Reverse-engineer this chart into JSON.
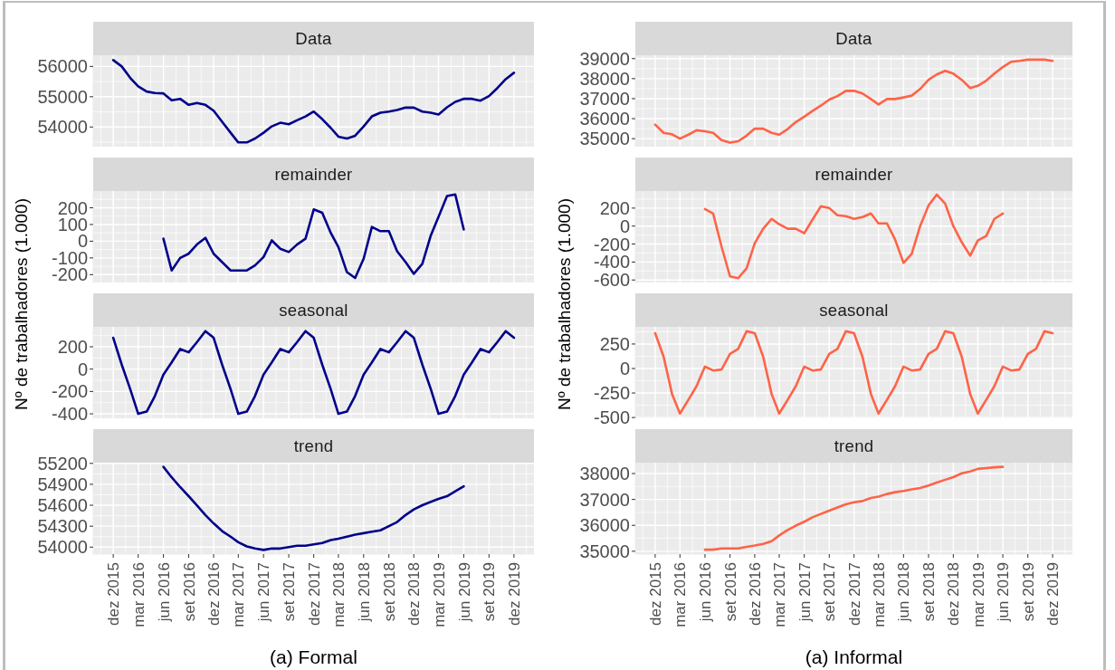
{
  "chart_data": [
    {
      "type": "line",
      "title": "Data",
      "x": [
        "2015-12",
        "2016-01",
        "2016-02",
        "2016-03",
        "2016-04",
        "2016-05",
        "2016-06",
        "2016-07",
        "2016-08",
        "2016-09",
        "2016-10",
        "2016-11",
        "2016-12",
        "2017-01",
        "2017-02",
        "2017-03",
        "2017-04",
        "2017-05",
        "2017-06",
        "2017-07",
        "2017-08",
        "2017-09",
        "2017-10",
        "2017-11",
        "2017-12",
        "2018-01",
        "2018-02",
        "2018-03",
        "2018-04",
        "2018-05",
        "2018-06",
        "2018-07",
        "2018-08",
        "2018-09",
        "2018-10",
        "2018-11",
        "2018-12",
        "2019-01",
        "2019-02",
        "2019-03",
        "2019-04",
        "2019-05",
        "2019-06",
        "2019-07",
        "2019-08",
        "2019-09",
        "2019-10",
        "2019-11",
        "2019-12"
      ],
      "series": [
        {
          "color": "#00008b",
          "values": [
            56210,
            56000,
            55620,
            55340,
            55170,
            55120,
            55110,
            54880,
            54930,
            54730,
            54790,
            54730,
            54540,
            54170,
            53810,
            53490,
            53490,
            53620,
            53810,
            54020,
            54140,
            54090,
            54220,
            54350,
            54510,
            54260,
            53970,
            53680,
            53620,
            53710,
            54020,
            54350,
            54470,
            54510,
            54560,
            54640,
            54640,
            54510,
            54470,
            54410,
            54650,
            54830,
            54930,
            54930,
            54870,
            55020,
            55280,
            55580,
            55790
          ]
        }
      ],
      "xlim": [
        "2015-09-19",
        "2020-02-12"
      ],
      "xticks": [
        {
          "value": "2015-12",
          "label": null
        },
        {
          "value": "2016-03",
          "label": null
        },
        {
          "value": "2016-06",
          "label": null
        },
        {
          "value": "2016-09",
          "label": null
        },
        {
          "value": "2016-12",
          "label": null
        },
        {
          "value": "2017-03",
          "label": null
        },
        {
          "value": "2017-06",
          "label": null
        },
        {
          "value": "2017-09",
          "label": null
        },
        {
          "value": "2017-12",
          "label": null
        },
        {
          "value": "2018-03",
          "label": null
        },
        {
          "value": "2018-06",
          "label": null
        },
        {
          "value": "2018-09",
          "label": null
        },
        {
          "value": "2018-12",
          "label": null
        },
        {
          "value": "2019-03",
          "label": null
        },
        {
          "value": "2019-06",
          "label": null
        },
        {
          "value": "2019-09",
          "label": null
        },
        {
          "value": "2019-12",
          "label": null
        }
      ],
      "ylim": [
        53350,
        56370
      ],
      "yticks": [
        54000,
        55000,
        56000
      ],
      "grid": true,
      "tick_labels": "y"
    },
    {
      "type": "line",
      "title": "remainder",
      "x": [
        "2016-06",
        "2016-07",
        "2016-08",
        "2016-09",
        "2016-10",
        "2016-11",
        "2016-12",
        "2017-01",
        "2017-02",
        "2017-03",
        "2017-04",
        "2017-05",
        "2017-06",
        "2017-07",
        "2017-08",
        "2017-09",
        "2017-10",
        "2017-11",
        "2017-12",
        "2018-01",
        "2018-02",
        "2018-03",
        "2018-04",
        "2018-05",
        "2018-06",
        "2018-07",
        "2018-08",
        "2018-09",
        "2018-10",
        "2018-11",
        "2018-12",
        "2019-01",
        "2019-02",
        "2019-03",
        "2019-04",
        "2019-05",
        "2019-06"
      ],
      "series": [
        {
          "color": "#00008b",
          "values": [
            15,
            -175,
            -100,
            -75,
            -20,
            20,
            -75,
            -125,
            -175,
            -175,
            -175,
            -145,
            -95,
            5,
            -45,
            -65,
            -20,
            15,
            190,
            170,
            50,
            -35,
            -185,
            -220,
            -105,
            85,
            60,
            60,
            -60,
            -125,
            -195,
            -135,
            35,
            145,
            270,
            280,
            70
          ]
        }
      ],
      "xlim": [
        "2015-09-19",
        "2020-02-12"
      ],
      "xticks": [
        {
          "value": "2015-12",
          "label": null
        },
        {
          "value": "2016-03",
          "label": null
        },
        {
          "value": "2016-06",
          "label": null
        },
        {
          "value": "2016-09",
          "label": null
        },
        {
          "value": "2016-12",
          "label": null
        },
        {
          "value": "2017-03",
          "label": null
        },
        {
          "value": "2017-06",
          "label": null
        },
        {
          "value": "2017-09",
          "label": null
        },
        {
          "value": "2017-12",
          "label": null
        },
        {
          "value": "2018-03",
          "label": null
        },
        {
          "value": "2018-06",
          "label": null
        },
        {
          "value": "2018-09",
          "label": null
        },
        {
          "value": "2018-12",
          "label": null
        },
        {
          "value": "2019-03",
          "label": null
        },
        {
          "value": "2019-06",
          "label": null
        },
        {
          "value": "2019-09",
          "label": null
        },
        {
          "value": "2019-12",
          "label": null
        }
      ],
      "ylim": [
        -247,
        300
      ],
      "yticks": [
        -200,
        -100,
        0,
        100,
        200
      ],
      "grid": true,
      "tick_labels": "y"
    },
    {
      "type": "line",
      "title": "seasonal",
      "ylabel": "Nº de trabalhadores (1.000)",
      "x": [
        "2015-12",
        "2016-01",
        "2016-02",
        "2016-03",
        "2016-04",
        "2016-05",
        "2016-06",
        "2016-07",
        "2016-08",
        "2016-09",
        "2016-10",
        "2016-11",
        "2016-12",
        "2017-01",
        "2017-02",
        "2017-03",
        "2017-04",
        "2017-05",
        "2017-06",
        "2017-07",
        "2017-08",
        "2017-09",
        "2017-10",
        "2017-11",
        "2017-12",
        "2018-01",
        "2018-02",
        "2018-03",
        "2018-04",
        "2018-05",
        "2018-06",
        "2018-07",
        "2018-08",
        "2018-09",
        "2018-10",
        "2018-11",
        "2018-12",
        "2019-01",
        "2019-02",
        "2019-03",
        "2019-04",
        "2019-05",
        "2019-06",
        "2019-07",
        "2019-08",
        "2019-09",
        "2019-10",
        "2019-11",
        "2019-12"
      ],
      "series": [
        {
          "color": "#00008b",
          "values": [
            280,
            40,
            -180,
            -400,
            -380,
            -240,
            -50,
            60,
            180,
            150,
            240,
            340,
            280,
            40,
            -180,
            -400,
            -380,
            -240,
            -50,
            60,
            180,
            150,
            240,
            340,
            280,
            40,
            -180,
            -400,
            -380,
            -240,
            -50,
            60,
            180,
            150,
            240,
            340,
            280,
            40,
            -180,
            -400,
            -380,
            -240,
            -50,
            60,
            180,
            150,
            240,
            340,
            280
          ]
        }
      ],
      "xlim": [
        "2015-09-19",
        "2020-02-12"
      ],
      "xticks": [
        {
          "value": "2015-12",
          "label": null
        },
        {
          "value": "2016-03",
          "label": null
        },
        {
          "value": "2016-06",
          "label": null
        },
        {
          "value": "2016-09",
          "label": null
        },
        {
          "value": "2016-12",
          "label": null
        },
        {
          "value": "2017-03",
          "label": null
        },
        {
          "value": "2017-06",
          "label": null
        },
        {
          "value": "2017-09",
          "label": null
        },
        {
          "value": "2017-12",
          "label": null
        },
        {
          "value": "2018-03",
          "label": null
        },
        {
          "value": "2018-06",
          "label": null
        },
        {
          "value": "2018-09",
          "label": null
        },
        {
          "value": "2018-12",
          "label": null
        },
        {
          "value": "2019-03",
          "label": null
        },
        {
          "value": "2019-06",
          "label": null
        },
        {
          "value": "2019-09",
          "label": null
        },
        {
          "value": "2019-12",
          "label": null
        }
      ],
      "ylim": [
        -440,
        378
      ],
      "yticks": [
        -400,
        -200,
        0,
        200
      ],
      "grid": true,
      "tick_labels": "y"
    },
    {
      "type": "line",
      "title": "trend",
      "xlabel": "(a) Formal",
      "x": [
        "2016-06",
        "2016-07",
        "2016-08",
        "2016-09",
        "2016-10",
        "2016-11",
        "2016-12",
        "2017-01",
        "2017-02",
        "2017-03",
        "2017-04",
        "2017-05",
        "2017-06",
        "2017-07",
        "2017-08",
        "2017-09",
        "2017-10",
        "2017-11",
        "2017-12",
        "2018-01",
        "2018-02",
        "2018-03",
        "2018-04",
        "2018-05",
        "2018-06",
        "2018-07",
        "2018-08",
        "2018-09",
        "2018-10",
        "2018-11",
        "2018-12",
        "2019-01",
        "2019-02",
        "2019-03",
        "2019-04",
        "2019-05",
        "2019-06"
      ],
      "series": [
        {
          "color": "#00008b",
          "values": [
            55150,
            55000,
            54860,
            54730,
            54600,
            54460,
            54340,
            54230,
            54150,
            54070,
            54010,
            53980,
            53960,
            53980,
            53980,
            54000,
            54020,
            54020,
            54040,
            54060,
            54100,
            54120,
            54150,
            54180,
            54200,
            54220,
            54240,
            54300,
            54360,
            54460,
            54540,
            54600,
            54650,
            54690,
            54730,
            54800,
            54870
          ]
        }
      ],
      "xlim": [
        "2015-09-19",
        "2020-02-12"
      ],
      "xticks": [
        {
          "value": "2015-12",
          "label": "dez 2015"
        },
        {
          "value": "2016-03",
          "label": "mar 2016"
        },
        {
          "value": "2016-06",
          "label": "jun 2016"
        },
        {
          "value": "2016-09",
          "label": "set 2016"
        },
        {
          "value": "2016-12",
          "label": "dez 2016"
        },
        {
          "value": "2017-03",
          "label": "mar 2017"
        },
        {
          "value": "2017-06",
          "label": "jun 2017"
        },
        {
          "value": "2017-09",
          "label": "set 2017"
        },
        {
          "value": "2017-12",
          "label": "dez 2017"
        },
        {
          "value": "2018-03",
          "label": "mar 2018"
        },
        {
          "value": "2018-06",
          "label": "jun 2018"
        },
        {
          "value": "2018-09",
          "label": "set 2018"
        },
        {
          "value": "2018-12",
          "label": "dez 2018"
        },
        {
          "value": "2019-03",
          "label": "mar 2019"
        },
        {
          "value": "2019-06",
          "label": "jun 2019"
        },
        {
          "value": "2019-09",
          "label": "set 2019"
        },
        {
          "value": "2019-12",
          "label": "dez 2019"
        }
      ],
      "ylim": [
        53900,
        55210
      ],
      "yticks": [
        54000,
        54300,
        54600,
        54900,
        55200
      ],
      "grid": true
    },
    {
      "type": "line",
      "title": "Data",
      "x": [
        "2015-12",
        "2016-01",
        "2016-02",
        "2016-03",
        "2016-04",
        "2016-05",
        "2016-06",
        "2016-07",
        "2016-08",
        "2016-09",
        "2016-10",
        "2016-11",
        "2016-12",
        "2017-01",
        "2017-02",
        "2017-03",
        "2017-04",
        "2017-05",
        "2017-06",
        "2017-07",
        "2017-08",
        "2017-09",
        "2017-10",
        "2017-11",
        "2017-12",
        "2018-01",
        "2018-02",
        "2018-03",
        "2018-04",
        "2018-05",
        "2018-06",
        "2018-07",
        "2018-08",
        "2018-09",
        "2018-10",
        "2018-11",
        "2018-12",
        "2019-01",
        "2019-02",
        "2019-03",
        "2019-04",
        "2019-05",
        "2019-06",
        "2019-07",
        "2019-08",
        "2019-09",
        "2019-10",
        "2019-11",
        "2019-12"
      ],
      "series": [
        {
          "color": "#ff6347",
          "values": [
            35700,
            35290,
            35220,
            35000,
            35200,
            35420,
            35370,
            35290,
            34930,
            34800,
            34870,
            35150,
            35500,
            35500,
            35290,
            35200,
            35480,
            35830,
            36100,
            36380,
            36650,
            36950,
            37130,
            37390,
            37390,
            37260,
            36980,
            36710,
            36980,
            36980,
            37060,
            37150,
            37480,
            37940,
            38210,
            38390,
            38250,
            37940,
            37530,
            37640,
            37900,
            38250,
            38580,
            38840,
            38890,
            38950,
            38950,
            38950,
            38890
          ]
        }
      ],
      "xlim": [
        "2015-09-19",
        "2020-02-12"
      ],
      "xticks": [
        {
          "value": "2015-12",
          "label": null
        },
        {
          "value": "2016-03",
          "label": null
        },
        {
          "value": "2016-06",
          "label": null
        },
        {
          "value": "2016-09",
          "label": null
        },
        {
          "value": "2016-12",
          "label": null
        },
        {
          "value": "2017-03",
          "label": null
        },
        {
          "value": "2017-06",
          "label": null
        },
        {
          "value": "2017-09",
          "label": null
        },
        {
          "value": "2017-12",
          "label": null
        },
        {
          "value": "2018-03",
          "label": null
        },
        {
          "value": "2018-06",
          "label": null
        },
        {
          "value": "2018-09",
          "label": null
        },
        {
          "value": "2018-12",
          "label": null
        },
        {
          "value": "2019-03",
          "label": null
        },
        {
          "value": "2019-06",
          "label": null
        },
        {
          "value": "2019-09",
          "label": null
        },
        {
          "value": "2019-12",
          "label": null
        }
      ],
      "ylim": [
        34600,
        39170
      ],
      "yticks": [
        35000,
        36000,
        37000,
        38000,
        39000
      ],
      "grid": true,
      "tick_labels": "y"
    },
    {
      "type": "line",
      "title": "remainder",
      "x": [
        "2016-06",
        "2016-07",
        "2016-08",
        "2016-09",
        "2016-10",
        "2016-11",
        "2016-12",
        "2017-01",
        "2017-02",
        "2017-03",
        "2017-04",
        "2017-05",
        "2017-06",
        "2017-07",
        "2017-08",
        "2017-09",
        "2017-10",
        "2017-11",
        "2017-12",
        "2018-01",
        "2018-02",
        "2018-03",
        "2018-04",
        "2018-05",
        "2018-06",
        "2018-07",
        "2018-08",
        "2018-09",
        "2018-10",
        "2018-11",
        "2018-12",
        "2019-01",
        "2019-02",
        "2019-03",
        "2019-04",
        "2019-05",
        "2019-06"
      ],
      "series": [
        {
          "color": "#ff6347",
          "values": [
            190,
            140,
            -230,
            -560,
            -580,
            -470,
            -190,
            -30,
            80,
            20,
            -30,
            -30,
            -80,
            70,
            220,
            200,
            120,
            110,
            80,
            100,
            140,
            30,
            30,
            -150,
            -410,
            -310,
            0,
            230,
            350,
            250,
            0,
            -180,
            -330,
            -160,
            -110,
            80,
            140
          ]
        }
      ],
      "xlim": [
        "2015-09-19",
        "2020-02-12"
      ],
      "xticks": [
        {
          "value": "2015-12",
          "label": null
        },
        {
          "value": "2016-03",
          "label": null
        },
        {
          "value": "2016-06",
          "label": null
        },
        {
          "value": "2016-09",
          "label": null
        },
        {
          "value": "2016-12",
          "label": null
        },
        {
          "value": "2017-03",
          "label": null
        },
        {
          "value": "2017-06",
          "label": null
        },
        {
          "value": "2017-09",
          "label": null
        },
        {
          "value": "2017-12",
          "label": null
        },
        {
          "value": "2018-03",
          "label": null
        },
        {
          "value": "2018-06",
          "label": null
        },
        {
          "value": "2018-09",
          "label": null
        },
        {
          "value": "2018-12",
          "label": null
        },
        {
          "value": "2019-03",
          "label": null
        },
        {
          "value": "2019-06",
          "label": null
        },
        {
          "value": "2019-09",
          "label": null
        },
        {
          "value": "2019-12",
          "label": null
        }
      ],
      "ylim": [
        -628,
        390
      ],
      "yticks": [
        -600,
        -400,
        -200,
        0,
        200
      ],
      "grid": true,
      "tick_labels": "y"
    },
    {
      "type": "line",
      "title": "seasonal",
      "ylabel": "Nº de trabalhadores (1.000)",
      "x": [
        "2015-12",
        "2016-01",
        "2016-02",
        "2016-03",
        "2016-04",
        "2016-05",
        "2016-06",
        "2016-07",
        "2016-08",
        "2016-09",
        "2016-10",
        "2016-11",
        "2016-12",
        "2017-01",
        "2017-02",
        "2017-03",
        "2017-04",
        "2017-05",
        "2017-06",
        "2017-07",
        "2017-08",
        "2017-09",
        "2017-10",
        "2017-11",
        "2017-12",
        "2018-01",
        "2018-02",
        "2018-03",
        "2018-04",
        "2018-05",
        "2018-06",
        "2018-07",
        "2018-08",
        "2018-09",
        "2018-10",
        "2018-11",
        "2018-12",
        "2019-01",
        "2019-02",
        "2019-03",
        "2019-04",
        "2019-05",
        "2019-06",
        "2019-07",
        "2019-08",
        "2019-09",
        "2019-10",
        "2019-11",
        "2019-12"
      ],
      "series": [
        {
          "color": "#ff6347",
          "values": [
            360,
            120,
            -260,
            -460,
            -320,
            -180,
            20,
            -20,
            -10,
            150,
            200,
            380,
            360,
            120,
            -260,
            -460,
            -320,
            -180,
            20,
            -20,
            -10,
            150,
            200,
            380,
            360,
            120,
            -260,
            -460,
            -320,
            -180,
            20,
            -20,
            -10,
            150,
            200,
            380,
            360,
            120,
            -260,
            -460,
            -320,
            -180,
            20,
            -20,
            -10,
            150,
            200,
            380,
            360
          ]
        }
      ],
      "xlim": [
        "2015-09-19",
        "2020-02-12"
      ],
      "xticks": [
        {
          "value": "2015-12",
          "label": null
        },
        {
          "value": "2016-03",
          "label": null
        },
        {
          "value": "2016-06",
          "label": null
        },
        {
          "value": "2016-09",
          "label": null
        },
        {
          "value": "2016-12",
          "label": null
        },
        {
          "value": "2017-03",
          "label": null
        },
        {
          "value": "2017-06",
          "label": null
        },
        {
          "value": "2017-09",
          "label": null
        },
        {
          "value": "2017-12",
          "label": null
        },
        {
          "value": "2018-03",
          "label": null
        },
        {
          "value": "2018-06",
          "label": null
        },
        {
          "value": "2018-09",
          "label": null
        },
        {
          "value": "2018-12",
          "label": null
        },
        {
          "value": "2019-03",
          "label": null
        },
        {
          "value": "2019-06",
          "label": null
        },
        {
          "value": "2019-09",
          "label": null
        },
        {
          "value": "2019-12",
          "label": null
        }
      ],
      "ylim": [
        -508,
        425
      ],
      "yticks": [
        -500,
        -250,
        0,
        250
      ],
      "grid": true,
      "tick_labels": "y"
    },
    {
      "type": "line",
      "title": "trend",
      "xlabel": "(a) Informal",
      "x": [
        "2016-06",
        "2016-07",
        "2016-08",
        "2016-09",
        "2016-10",
        "2016-11",
        "2016-12",
        "2017-01",
        "2017-02",
        "2017-03",
        "2017-04",
        "2017-05",
        "2017-06",
        "2017-07",
        "2017-08",
        "2017-09",
        "2017-10",
        "2017-11",
        "2017-12",
        "2018-01",
        "2018-02",
        "2018-03",
        "2018-04",
        "2018-05",
        "2018-06",
        "2018-07",
        "2018-08",
        "2018-09",
        "2018-10",
        "2018-11",
        "2018-12",
        "2019-01",
        "2019-02",
        "2019-03",
        "2019-04",
        "2019-05",
        "2019-06"
      ],
      "series": [
        {
          "color": "#ff6347",
          "values": [
            35060,
            35060,
            35110,
            35110,
            35110,
            35170,
            35220,
            35280,
            35390,
            35610,
            35820,
            35990,
            36140,
            36310,
            36440,
            36570,
            36690,
            36810,
            36890,
            36940,
            37060,
            37110,
            37210,
            37280,
            37330,
            37390,
            37440,
            37540,
            37650,
            37760,
            37860,
            38010,
            38080,
            38180,
            38210,
            38240,
            38260
          ]
        }
      ],
      "xlim": [
        "2015-09-19",
        "2020-02-12"
      ],
      "xticks": [
        {
          "value": "2015-12",
          "label": "dez 2015"
        },
        {
          "value": "2016-03",
          "label": "mar 2016"
        },
        {
          "value": "2016-06",
          "label": "jun 2016"
        },
        {
          "value": "2016-09",
          "label": "set 2016"
        },
        {
          "value": "2016-12",
          "label": "dez 2016"
        },
        {
          "value": "2017-03",
          "label": "mar 2017"
        },
        {
          "value": "2017-06",
          "label": "jun 2017"
        },
        {
          "value": "2017-09",
          "label": "set 2017"
        },
        {
          "value": "2017-12",
          "label": "dez 2017"
        },
        {
          "value": "2018-03",
          "label": "mar 2018"
        },
        {
          "value": "2018-06",
          "label": "jun 2018"
        },
        {
          "value": "2018-09",
          "label": "set 2018"
        },
        {
          "value": "2018-12",
          "label": "dez 2018"
        },
        {
          "value": "2019-03",
          "label": "mar 2019"
        },
        {
          "value": "2019-06",
          "label": "jun 2019"
        },
        {
          "value": "2019-09",
          "label": "set 2019"
        },
        {
          "value": "2019-12",
          "label": "dez 2019"
        }
      ],
      "ylim": [
        34890,
        38420
      ],
      "yticks": [
        35000,
        36000,
        37000,
        38000
      ],
      "grid": true
    }
  ]
}
